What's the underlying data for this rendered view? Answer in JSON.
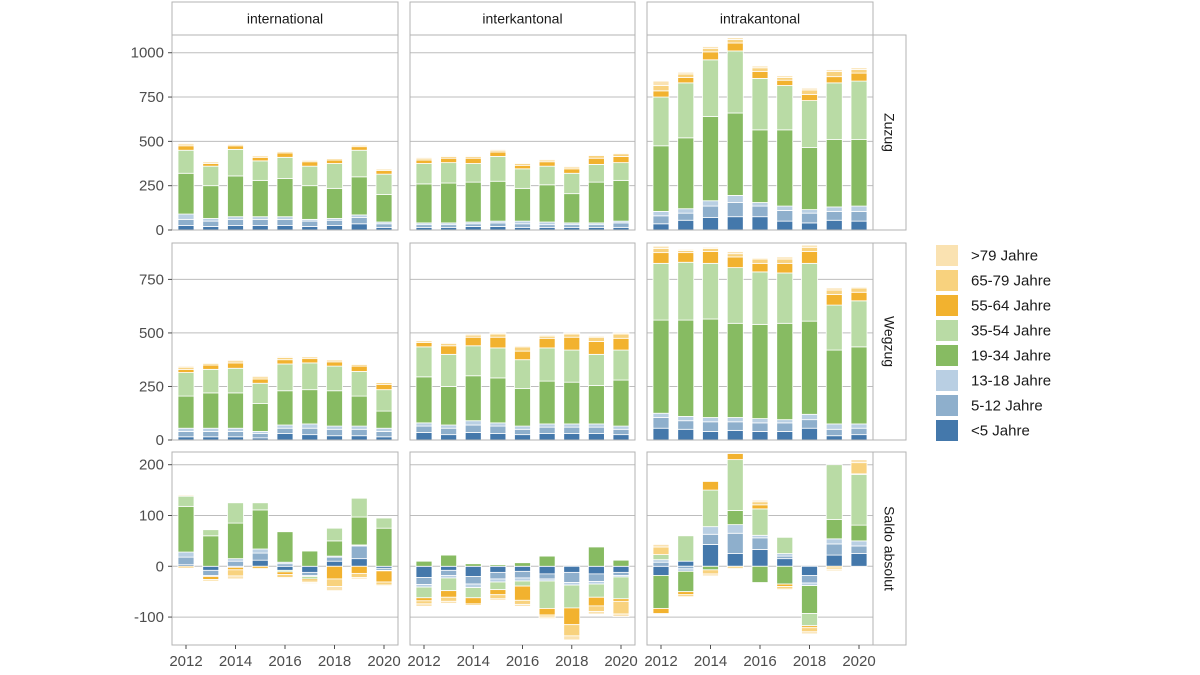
{
  "chart_data": {
    "type": "bar",
    "stacked": true,
    "x": [
      2012,
      2013,
      2014,
      2015,
      2016,
      2017,
      2018,
      2019,
      2020
    ],
    "x_tick_labels": [
      "2012",
      "2014",
      "2016",
      "2018",
      "2020"
    ],
    "columns": [
      "international",
      "interkantonal",
      "intrakantonal"
    ],
    "rows": [
      {
        "label": "Zuzug",
        "ylim": [
          0,
          1100
        ],
        "yticks": [
          0,
          250,
          500,
          750,
          1000
        ],
        "ytick_labels": [
          "0",
          "250",
          "500",
          "750",
          "1000"
        ]
      },
      {
        "label": "Wegzug",
        "ylim": [
          0,
          920
        ],
        "yticks": [
          0,
          250,
          500,
          750
        ],
        "ytick_labels": [
          "0",
          "250",
          "500",
          "750"
        ]
      },
      {
        "label": "Saldo absolut",
        "ylim": [
          -155,
          225
        ],
        "yticks": [
          -100,
          0,
          100,
          200
        ],
        "ytick_labels": [
          "-100",
          "0",
          "100",
          "200"
        ]
      }
    ],
    "categories": [
      {
        "label": "<5 Jahre",
        "color": "#4478ab"
      },
      {
        "label": "5-12 Jahre",
        "color": "#8eafcc"
      },
      {
        "label": "13-18 Jahre",
        "color": "#b9cfe3"
      },
      {
        "label": "19-34 Jahre",
        "color": "#87bb62"
      },
      {
        "label": "35-54 Jahre",
        "color": "#b9dba5"
      },
      {
        "label": "55-64 Jahre",
        "color": "#f2b22f"
      },
      {
        "label": "65-79 Jahre",
        "color": "#f8d27e"
      },
      {
        "label": ">79 Jahre",
        "color": "#fae2b1"
      }
    ],
    "legend_order": [
      ">79 Jahre",
      "65-79 Jahre",
      "55-64 Jahre",
      "35-54 Jahre",
      "19-34 Jahre",
      "13-18 Jahre",
      "5-12 Jahre",
      "<5 Jahre"
    ],
    "panels": {
      "Zuzug": {
        "international": [
          [
            25,
            35,
            30,
            230,
            130,
            25,
            10,
            5
          ],
          [
            20,
            30,
            15,
            185,
            110,
            15,
            8,
            3
          ],
          [
            25,
            35,
            15,
            230,
            150,
            20,
            8,
            3
          ],
          [
            25,
            35,
            15,
            205,
            110,
            20,
            8,
            3
          ],
          [
            25,
            35,
            15,
            215,
            120,
            25,
            8,
            3
          ],
          [
            20,
            30,
            10,
            190,
            110,
            25,
            8,
            3
          ],
          [
            25,
            30,
            10,
            170,
            140,
            20,
            8,
            3
          ],
          [
            35,
            35,
            15,
            215,
            150,
            20,
            8,
            2
          ],
          [
            15,
            20,
            10,
            155,
            115,
            20,
            8,
            2
          ]
        ],
        "interkantonal": [
          [
            15,
            15,
            10,
            220,
            115,
            20,
            10,
            5
          ],
          [
            15,
            15,
            10,
            225,
            115,
            25,
            10,
            5
          ],
          [
            20,
            15,
            10,
            225,
            105,
            30,
            10,
            5
          ],
          [
            20,
            20,
            10,
            225,
            140,
            25,
            10,
            5
          ],
          [
            15,
            20,
            15,
            185,
            110,
            20,
            10,
            5
          ],
          [
            15,
            15,
            15,
            210,
            105,
            25,
            10,
            5
          ],
          [
            15,
            15,
            10,
            165,
            115,
            25,
            10,
            5
          ],
          [
            15,
            15,
            10,
            230,
            100,
            35,
            15,
            5
          ],
          [
            15,
            25,
            10,
            230,
            100,
            35,
            15,
            5
          ]
        ],
        "intrakantonal": [
          [
            35,
            45,
            25,
            370,
            275,
            35,
            30,
            25
          ],
          [
            55,
            40,
            25,
            400,
            310,
            30,
            20,
            10
          ],
          [
            70,
            65,
            30,
            475,
            320,
            45,
            20,
            10
          ],
          [
            75,
            80,
            40,
            465,
            350,
            45,
            20,
            10
          ],
          [
            75,
            60,
            20,
            410,
            290,
            40,
            20,
            10
          ],
          [
            50,
            60,
            25,
            430,
            250,
            30,
            15,
            10
          ],
          [
            40,
            55,
            20,
            350,
            265,
            35,
            25,
            10
          ],
          [
            55,
            50,
            25,
            380,
            320,
            35,
            30,
            10
          ],
          [
            50,
            55,
            30,
            375,
            330,
            45,
            20,
            10
          ]
        ]
      },
      "Wegzug": {
        "international": [
          [
            15,
            25,
            15,
            150,
            110,
            15,
            10,
            5
          ],
          [
            15,
            25,
            15,
            165,
            110,
            20,
            8,
            2
          ],
          [
            15,
            25,
            15,
            165,
            115,
            25,
            10,
            5
          ],
          [
            10,
            20,
            10,
            130,
            95,
            20,
            10,
            5
          ],
          [
            30,
            25,
            15,
            160,
            125,
            20,
            10,
            5
          ],
          [
            25,
            30,
            20,
            160,
            125,
            20,
            8,
            2
          ],
          [
            20,
            30,
            15,
            165,
            115,
            20,
            8,
            2
          ],
          [
            20,
            30,
            15,
            140,
            115,
            25,
            8,
            2
          ],
          [
            15,
            25,
            15,
            80,
            100,
            25,
            8,
            2
          ]
        ],
        "interkantonal": [
          [
            35,
            30,
            15,
            215,
            140,
            20,
            8,
            2
          ],
          [
            25,
            30,
            15,
            180,
            150,
            40,
            10,
            5
          ],
          [
            35,
            35,
            20,
            210,
            140,
            40,
            10,
            5
          ],
          [
            30,
            35,
            15,
            210,
            140,
            50,
            15,
            5
          ],
          [
            25,
            25,
            15,
            175,
            135,
            40,
            20,
            5
          ],
          [
            30,
            30,
            15,
            200,
            155,
            45,
            10,
            5
          ],
          [
            30,
            30,
            15,
            195,
            150,
            60,
            15,
            5
          ],
          [
            30,
            30,
            15,
            180,
            145,
            60,
            20,
            5
          ],
          [
            25,
            25,
            15,
            215,
            140,
            55,
            20,
            5
          ]
        ],
        "intrakantonal": [
          [
            55,
            50,
            20,
            435,
            265,
            50,
            20,
            10
          ],
          [
            50,
            40,
            20,
            450,
            270,
            45,
            10,
            5
          ],
          [
            40,
            45,
            20,
            460,
            260,
            55,
            15,
            5
          ],
          [
            45,
            40,
            20,
            440,
            260,
            50,
            15,
            10
          ],
          [
            40,
            40,
            20,
            440,
            245,
            40,
            20,
            5
          ],
          [
            40,
            40,
            15,
            450,
            235,
            45,
            20,
            10
          ],
          [
            55,
            40,
            25,
            435,
            270,
            55,
            20,
            10
          ],
          [
            20,
            30,
            25,
            345,
            210,
            50,
            20,
            10
          ],
          [
            25,
            30,
            20,
            360,
            215,
            40,
            20,
            5
          ]
        ]
      },
      "Saldo absolut": {
        "international": [
          [
            3,
            15,
            10,
            90,
            20,
            -3,
            2,
            1
          ],
          [
            -8,
            -10,
            -2,
            60,
            12,
            -6,
            -3,
            -1
          ],
          [
            -2,
            10,
            5,
            70,
            40,
            -5,
            -12,
            -6
          ],
          [
            12,
            14,
            8,
            77,
            14,
            -4,
            -2,
            -1
          ],
          [
            -8,
            5,
            3,
            60,
            -3,
            -5,
            -6,
            -2
          ],
          [
            -12,
            -6,
            -2,
            30,
            -5,
            -4,
            -3,
            -2
          ],
          [
            10,
            8,
            2,
            30,
            25,
            -25,
            -15,
            -8
          ],
          [
            15,
            25,
            2,
            55,
            37,
            -14,
            -8,
            -3
          ],
          [
            -4,
            -4,
            -1,
            75,
            20,
            -22,
            -6,
            -2
          ]
        ],
        "interkantonal": [
          [
            -22,
            -14,
            -5,
            10,
            -21,
            -6,
            -6,
            -5
          ],
          [
            -8,
            -10,
            -5,
            22,
            -25,
            -13,
            -8,
            -4
          ],
          [
            -20,
            -15,
            -7,
            5,
            -20,
            -12,
            -3,
            -1
          ],
          [
            -12,
            -13,
            -6,
            3,
            -15,
            -10,
            -8,
            -3
          ],
          [
            -10,
            -13,
            -6,
            7,
            -10,
            -28,
            -8,
            -4
          ],
          [
            -15,
            -10,
            -4,
            20,
            -54,
            -13,
            -4,
            -3
          ],
          [
            -12,
            -20,
            -5,
            0,
            -45,
            -33,
            -22,
            -8
          ],
          [
            -15,
            -15,
            -5,
            38,
            -26,
            -17,
            -11,
            -5
          ],
          [
            -12,
            -6,
            -3,
            12,
            -43,
            -5,
            -25,
            -5
          ]
        ],
        "intrakantonal": [
          [
            -18,
            8,
            5,
            -65,
            10,
            -10,
            15,
            5
          ],
          [
            10,
            -5,
            -5,
            -40,
            50,
            -6,
            -4,
            -1
          ],
          [
            43,
            20,
            15,
            -7,
            72,
            17,
            -8,
            -4
          ],
          [
            25,
            40,
            17,
            28,
            100,
            12,
            -4,
            -2
          ],
          [
            33,
            23,
            5,
            -32,
            52,
            8,
            6,
            3
          ],
          [
            15,
            5,
            5,
            -35,
            32,
            -5,
            -5,
            -2
          ],
          [
            -18,
            -15,
            -5,
            -55,
            -24,
            -4,
            -8,
            -4
          ],
          [
            22,
            22,
            10,
            38,
            108,
            -3,
            -3,
            -3
          ],
          [
            25,
            15,
            10,
            31,
            100,
            1,
            22,
            6
          ]
        ]
      }
    }
  }
}
